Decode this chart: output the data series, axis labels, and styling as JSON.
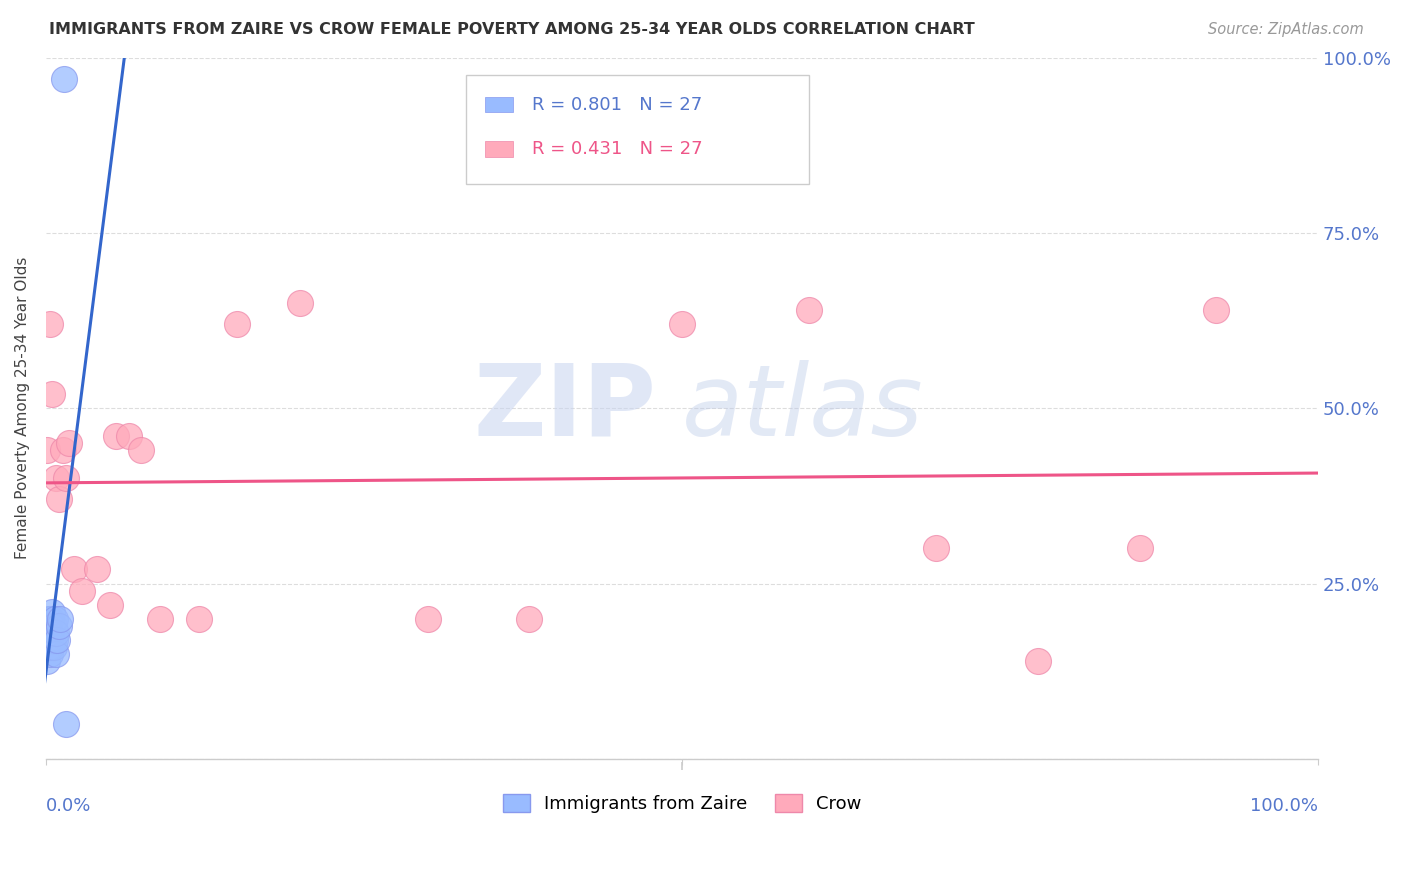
{
  "title": "IMMIGRANTS FROM ZAIRE VS CROW FEMALE POVERTY AMONG 25-34 YEAR OLDS CORRELATION CHART",
  "source": "Source: ZipAtlas.com",
  "ylabel": "Female Poverty Among 25-34 Year Olds",
  "yticks": [
    0.0,
    0.25,
    0.5,
    0.75,
    1.0
  ],
  "ytick_labels": [
    "",
    "25.0%",
    "50.0%",
    "75.0%",
    "100.0%"
  ],
  "blue_scatter_x": [
    0.001,
    0.001,
    0.001,
    0.002,
    0.002,
    0.002,
    0.003,
    0.003,
    0.003,
    0.003,
    0.004,
    0.004,
    0.004,
    0.005,
    0.005,
    0.005,
    0.006,
    0.006,
    0.007,
    0.007,
    0.008,
    0.008,
    0.009,
    0.01,
    0.011,
    0.014,
    0.016
  ],
  "blue_scatter_y": [
    0.14,
    0.17,
    0.19,
    0.16,
    0.18,
    0.2,
    0.15,
    0.17,
    0.18,
    0.2,
    0.16,
    0.18,
    0.2,
    0.17,
    0.19,
    0.21,
    0.16,
    0.19,
    0.17,
    0.2,
    0.15,
    0.18,
    0.17,
    0.19,
    0.2,
    0.97,
    0.05
  ],
  "pink_scatter_x": [
    0.001,
    0.003,
    0.005,
    0.008,
    0.01,
    0.013,
    0.016,
    0.018,
    0.022,
    0.028,
    0.04,
    0.05,
    0.055,
    0.065,
    0.075,
    0.09,
    0.12,
    0.15,
    0.2,
    0.3,
    0.38,
    0.5,
    0.6,
    0.7,
    0.78,
    0.86,
    0.92
  ],
  "pink_scatter_y": [
    0.44,
    0.62,
    0.52,
    0.4,
    0.37,
    0.44,
    0.4,
    0.45,
    0.27,
    0.24,
    0.27,
    0.22,
    0.46,
    0.46,
    0.44,
    0.2,
    0.2,
    0.62,
    0.65,
    0.2,
    0.2,
    0.62,
    0.64,
    0.3,
    0.14,
    0.3,
    0.64
  ],
  "blue_line_color": "#3366cc",
  "pink_line_color": "#ee5588",
  "blue_dot_color": "#99bbff",
  "pink_dot_color": "#ffaabb",
  "bg_color": "#ffffff",
  "grid_color": "#dddddd",
  "axis_color": "#cccccc",
  "label_color": "#5577cc",
  "title_color": "#333333",
  "source_color": "#999999",
  "legend_r1": "R = 0.801   N = 27",
  "legend_r2": "R = 0.431   N = 27",
  "legend_label1": "Immigrants from Zaire",
  "legend_label2": "Crow"
}
